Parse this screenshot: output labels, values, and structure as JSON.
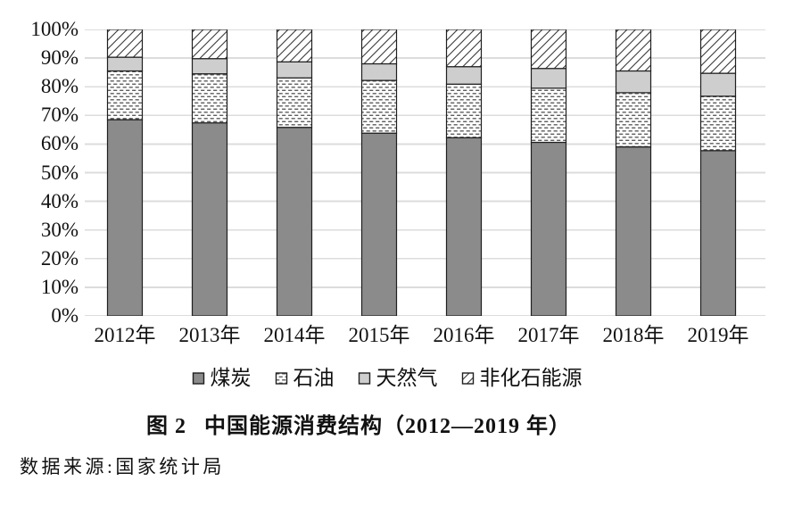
{
  "figure": {
    "title_prefix": "图 2",
    "title_text": "中国能源消费结构（2012—2019 年）",
    "source": "数据来源:国家统计局"
  },
  "chart_data": {
    "type": "bar",
    "subtype": "stacked-percent-column",
    "title": "图 2 中国能源消费结构（2012—2019 年）",
    "source_note": "数据来源:国家统计局",
    "categories": [
      "2012年",
      "2013年",
      "2014年",
      "2015年",
      "2016年",
      "2017年",
      "2018年",
      "2019年"
    ],
    "series": [
      {
        "key": "coal",
        "name": "煤炭",
        "style": "solid-dark",
        "values": [
          68.5,
          67.4,
          65.8,
          63.8,
          62.2,
          60.6,
          59.0,
          57.7
        ]
      },
      {
        "key": "oil",
        "name": "石油",
        "style": "dash-pattern",
        "values": [
          17.0,
          17.1,
          17.3,
          18.4,
          18.7,
          18.9,
          18.9,
          19.0
        ]
      },
      {
        "key": "gas",
        "name": "天然气",
        "style": "solid-light",
        "values": [
          4.8,
          5.3,
          5.6,
          5.8,
          6.1,
          6.9,
          7.6,
          8.0
        ]
      },
      {
        "key": "nonfossil",
        "name": "非化石能源",
        "style": "diagonal-hatch",
        "values": [
          9.7,
          10.2,
          11.3,
          12.0,
          13.0,
          13.6,
          14.5,
          15.3
        ]
      }
    ],
    "y_ticks": [
      "0%",
      "10%",
      "20%",
      "30%",
      "40%",
      "50%",
      "60%",
      "70%",
      "80%",
      "90%",
      "100%"
    ],
    "ylim": [
      0,
      100
    ],
    "grid": true,
    "legend_position": "bottom",
    "colors": {
      "coal_fill": "#8b8b8b",
      "gas_fill": "#cecece",
      "pattern_ink": "#5e5e5e",
      "hatch_ink": "#3a3a3a",
      "bar_border": "#1f1f1f",
      "gridline": "#dcdcdc",
      "text": "#111111",
      "background": "#ffffff"
    }
  }
}
